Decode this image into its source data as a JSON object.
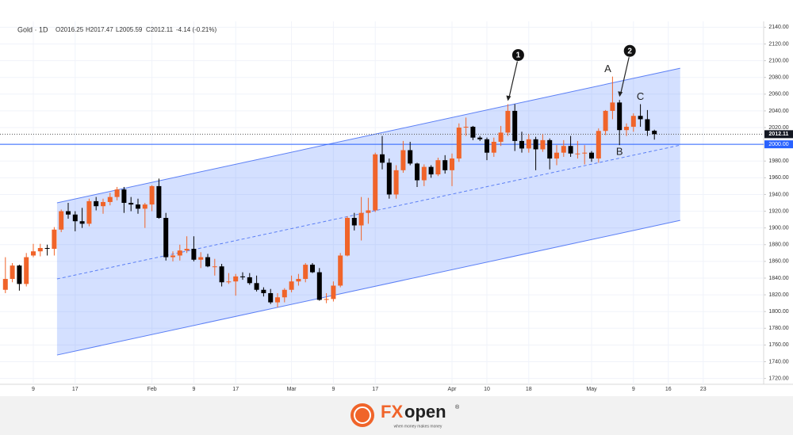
{
  "chart_data": {
    "type": "candlestick",
    "header": {
      "symbol": "Gold · 1D",
      "open": "O2016.25",
      "high": "H2017.47",
      "low": "L2005.59",
      "close": "C2012.11",
      "change": "-4.14 (-0.21%)"
    },
    "categories": [
      null,
      null,
      null,
      null,
      "9",
      null,
      null,
      null,
      null,
      null,
      "17",
      null,
      null,
      null,
      null,
      null,
      null,
      null,
      null,
      null,
      null,
      "Feb",
      null,
      null,
      null,
      null,
      null,
      "9",
      null,
      null,
      null,
      null,
      null,
      "17",
      null,
      null,
      null,
      null,
      null,
      null,
      null,
      "Mar",
      null,
      null,
      null,
      null,
      null,
      "9",
      null,
      null,
      null,
      null,
      null,
      "17",
      null,
      null,
      null,
      null,
      null,
      null,
      null,
      null,
      null,
      null,
      "Apr",
      null,
      null,
      null,
      null,
      "10",
      null,
      null,
      null,
      null,
      null,
      "18",
      null,
      null,
      null,
      null,
      null,
      null,
      null,
      null,
      "May",
      null,
      null,
      null,
      null,
      null,
      "9",
      null,
      null,
      null,
      null,
      "16",
      null,
      null,
      null,
      null,
      "23"
    ],
    "open": [
      1826,
      1839,
      1855,
      1833,
      1867,
      1872,
      1876,
      1875,
      1898,
      1920,
      1916,
      1908,
      1905,
      1932,
      1926,
      1931,
      1937,
      1946,
      1930,
      1928,
      1923,
      1928,
      1950,
      1912,
      1865,
      1867,
      1873,
      1875,
      1862,
      1865,
      1854,
      1854,
      1835,
      1836,
      1842,
      1841,
      1834,
      1826,
      1822,
      1811,
      1817,
      1826,
      1836,
      1839,
      1856,
      1847,
      1814,
      1815,
      1831,
      1867,
      1912,
      1903,
      1918,
      1921,
      1988,
      1978,
      1940,
      1969,
      1993,
      1977,
      1957,
      1973,
      1964,
      1981,
      1969,
      1983,
      2020,
      2021,
      2008,
      2006,
      1990,
      2003,
      2014,
      2040,
      2004,
      1995,
      2006,
      1994,
      2005,
      1983,
      1990,
      1998,
      1989,
      1989,
      1990,
      1983,
      2016,
      2040,
      2050,
      2017,
      2021,
      2034,
      2030,
      2016.25,
      null,
      null,
      null,
      null,
      null,
      null,
      null
    ],
    "high": [
      1865,
      1858,
      1856,
      1870,
      1881,
      1881,
      1880,
      1901,
      1922,
      1930,
      1920,
      1924,
      1935,
      1937,
      1935,
      1942,
      1949,
      1949,
      1937,
      1935,
      1930,
      1951,
      1959,
      1918,
      1872,
      1880,
      1890,
      1890,
      1871,
      1869,
      1863,
      1857,
      1846,
      1845,
      1847,
      1846,
      1843,
      1829,
      1827,
      1822,
      1828,
      1843,
      1845,
      1858,
      1858,
      1852,
      1822,
      1836,
      1870,
      1914,
      1918,
      1937,
      1936,
      1990,
      2010,
      1983,
      1975,
      2004,
      2003,
      1978,
      1976,
      1975,
      1984,
      1987,
      1989,
      2025,
      2032,
      2022,
      2010,
      2008,
      2008,
      2022,
      2048,
      2048,
      2015,
      2012,
      2009,
      2012,
      2007,
      1999,
      2005,
      2010,
      2004,
      1999,
      1992,
      2019,
      2041,
      2081,
      2053,
      2025,
      2037,
      2048,
      2041,
      2017.47,
      null,
      null,
      null,
      null,
      null,
      null,
      null
    ],
    "low": [
      1822,
      1835,
      1825,
      1830,
      1865,
      1866,
      1867,
      1867,
      1895,
      1911,
      1896,
      1900,
      1902,
      1921,
      1917,
      1927,
      1933,
      1918,
      1920,
      1917,
      1900,
      1920,
      1911,
      1861,
      1860,
      1861,
      1870,
      1860,
      1852,
      1853,
      1843,
      1830,
      1833,
      1819,
      1838,
      1832,
      1824,
      1818,
      1809,
      1805,
      1811,
      1823,
      1831,
      1835,
      1846,
      1813,
      1810,
      1812,
      1829,
      1866,
      1897,
      1885,
      1905,
      1919,
      1970,
      1935,
      1935,
      1966,
      1975,
      1949,
      1950,
      1960,
      1962,
      1965,
      1950,
      1979,
      2010,
      2005,
      2004,
      1981,
      1985,
      1998,
      2010,
      1992,
      1990,
      1990,
      1969,
      1991,
      1970,
      1975,
      1985,
      1985,
      1983,
      1976,
      1979,
      1978,
      2011,
      2030,
      1999,
      2010,
      2015,
      2021,
      2010,
      2005.59,
      null,
      null,
      null,
      null,
      null,
      null,
      null
    ],
    "close": [
      1839,
      1855,
      1833,
      1865,
      1872,
      1876,
      1875,
      1898,
      1920,
      1916,
      1908,
      1905,
      1932,
      1926,
      1931,
      1937,
      1946,
      1930,
      1928,
      1923,
      1928,
      1950,
      1912,
      1865,
      1867,
      1873,
      1875,
      1862,
      1865,
      1854,
      1854,
      1835,
      1836,
      1842,
      1841,
      1834,
      1826,
      1822,
      1811,
      1817,
      1826,
      1836,
      1839,
      1856,
      1847,
      1814,
      1815,
      1831,
      1867,
      1912,
      1903,
      1918,
      1921,
      1988,
      1978,
      1940,
      1969,
      1993,
      1977,
      1957,
      1973,
      1964,
      1981,
      1969,
      1983,
      2020,
      2021,
      2008,
      2006,
      1990,
      2003,
      2014,
      2040,
      2004,
      1995,
      2006,
      1994,
      2005,
      1983,
      1990,
      1998,
      1989,
      1989,
      1990,
      1983,
      2016,
      2040,
      2050,
      2017,
      2021,
      2034,
      2030,
      2016.25,
      2012.11,
      null,
      null,
      null,
      null,
      null,
      null,
      null
    ],
    "up_color": "#f0642a",
    "down_color": "#000000",
    "ylim": [
      1713,
      2147
    ],
    "yticks": [
      {
        "value": 2140,
        "label": "2140.00"
      },
      {
        "value": 2120,
        "label": "2120.00"
      },
      {
        "value": 2100,
        "label": "2100.00"
      },
      {
        "value": 2080,
        "label": "2080.00"
      },
      {
        "value": 2060,
        "label": "2060.00"
      },
      {
        "value": 2040,
        "label": "2040.00"
      },
      {
        "value": 2020,
        "label": "2020.00"
      },
      {
        "value": 2000,
        "label": "2000.00"
      },
      {
        "value": 1980,
        "label": "1980.00"
      },
      {
        "value": 1960,
        "label": "1960.00"
      },
      {
        "value": 1940,
        "label": "1940.00"
      },
      {
        "value": 1920,
        "label": "1920.00"
      },
      {
        "value": 1900,
        "label": "1900.00"
      },
      {
        "value": 1880,
        "label": "1880.00"
      },
      {
        "value": 1860,
        "label": "1860.00"
      },
      {
        "value": 1840,
        "label": "1840.00"
      },
      {
        "value": 1820,
        "label": "1820.00"
      },
      {
        "value": 1800,
        "label": "1800.00"
      },
      {
        "value": 1780,
        "label": "1780.00"
      },
      {
        "value": 1760,
        "label": "1760.00"
      },
      {
        "value": 1740,
        "label": "1740.00"
      },
      {
        "value": 1720,
        "label": "1720.00"
      }
    ],
    "grid": true,
    "last_price": 2012.11,
    "level": {
      "value": 2000,
      "label": "2000.00"
    },
    "channel": {
      "x": [
        7.4,
        96.7
      ],
      "upper": [
        1930,
        2091
      ],
      "lower": [
        1748,
        1909
      ],
      "middle": [
        1839,
        1999
      ]
    },
    "markers": [
      {
        "label": "1",
        "index": 72
      },
      {
        "label": "2",
        "index": 88
      }
    ],
    "wave_labels": [
      {
        "label": "A",
        "index": 87,
        "at": "high"
      },
      {
        "label": "B",
        "index": 88,
        "at": "low"
      },
      {
        "label": "C",
        "index": 91,
        "at": "high"
      }
    ],
    "logo": {
      "fx": "FX",
      "open": "open",
      "mark": "®",
      "tagline": "when money makes money"
    }
  }
}
